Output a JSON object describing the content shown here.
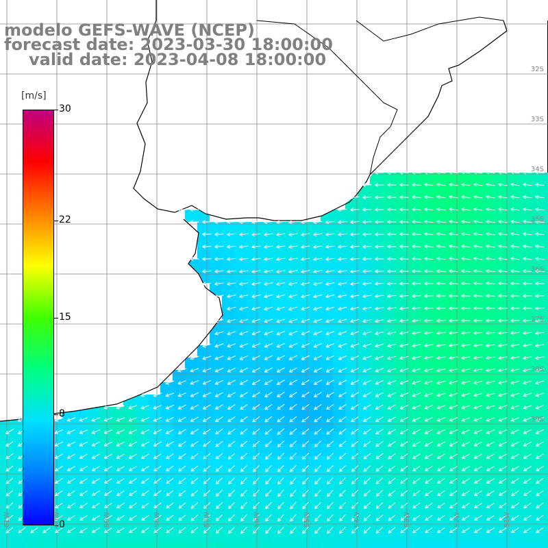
{
  "header": {
    "line1": "modelo GEFS-WAVE (NCEP)",
    "line2": "forecast date: 2023-03-30 18:00:00",
    "line3": "valid date: 2023-04-08 18:00:00"
  },
  "colorbar": {
    "unit": "[m/s]",
    "ticks": [
      "30",
      "22",
      "15",
      "8",
      "0"
    ],
    "tick_values": [
      30,
      22,
      15,
      8,
      0
    ],
    "min": 0,
    "max": 30,
    "colors": [
      "#0000ff",
      "#0080ff",
      "#00e0ff",
      "#00ff80",
      "#40ff00",
      "#ffff00",
      "#ff8000",
      "#ff0000",
      "#c00080"
    ]
  },
  "lat_labels": [
    "32S",
    "33S",
    "34S",
    "35S",
    "36S",
    "37S",
    "38S",
    "39S"
  ],
  "lon_labels": [
    "61W",
    "60W",
    "59W",
    "58W",
    "57W",
    "56W",
    "55W",
    "54W",
    "53W",
    "52W",
    "51W"
  ],
  "map": {
    "land_color": "#ffffff",
    "grid_color": "#888888",
    "coast_color": "#000000",
    "arrow_color": "#ffffff"
  }
}
